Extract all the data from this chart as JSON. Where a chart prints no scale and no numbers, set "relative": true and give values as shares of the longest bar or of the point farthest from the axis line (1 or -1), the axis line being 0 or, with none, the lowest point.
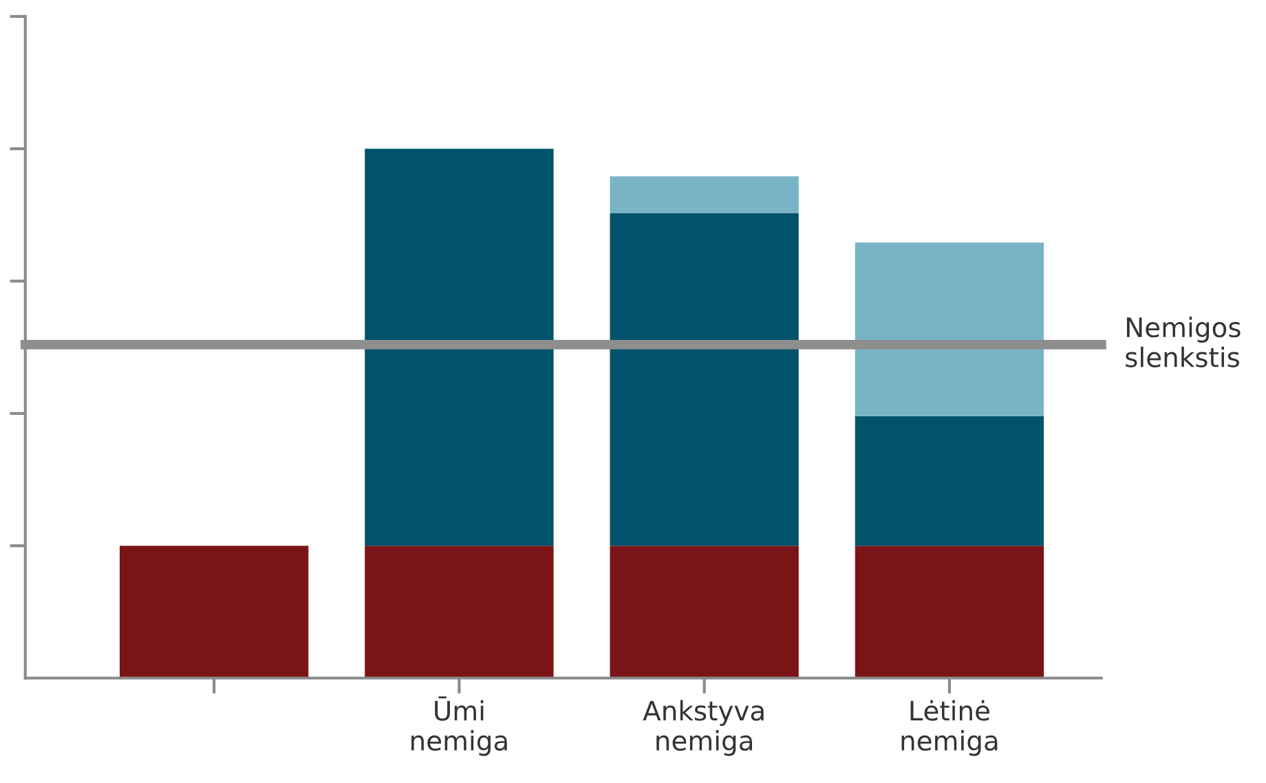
{
  "chart_data": {
    "type": "bar",
    "stacked": true,
    "relative": true,
    "categories": [
      null,
      "Ūmi\nnemiga",
      "Ankstyva\nnemiga",
      "Lėtinė\nnemiga"
    ],
    "series": [
      {
        "color": "#7b1416",
        "values": [
          0.25,
          0.25,
          0.25,
          0.25
        ]
      },
      {
        "color": "#00536b",
        "values": [
          null,
          0.75,
          0.628,
          0.245
        ]
      },
      {
        "color": "#78b4c6",
        "values": [
          null,
          null,
          0.07,
          0.328
        ]
      }
    ],
    "ref_lines": [
      {
        "axis": "y",
        "value": 0.63,
        "label": "Nemigos\nslenkstis",
        "color": "#8e8e8e"
      }
    ],
    "grid": false,
    "legend": false
  }
}
